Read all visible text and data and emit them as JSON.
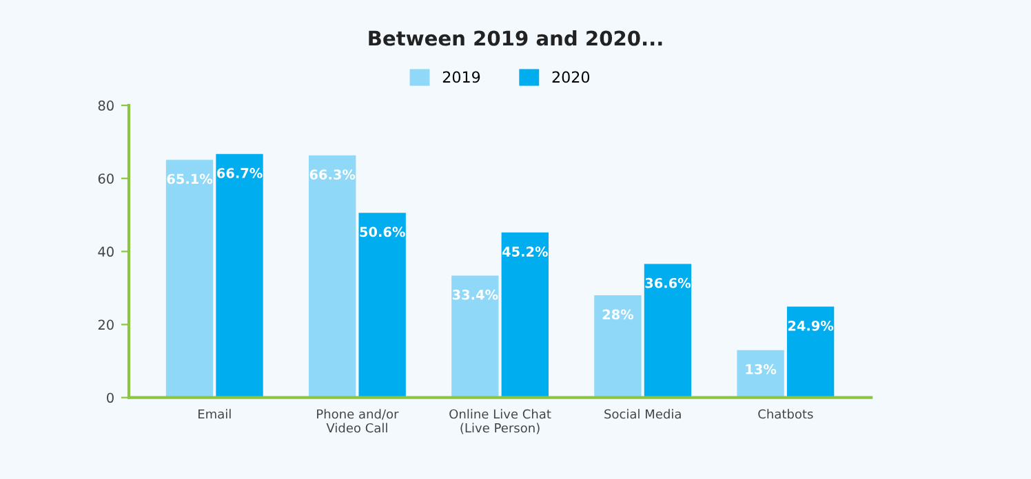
{
  "chart_data": {
    "type": "bar",
    "title": "Between 2019 and 2020...",
    "categories": [
      "Email",
      "Phone and/or\nVideo Call",
      "Online Live Chat\n(Live Person)",
      "Social Media",
      "Chatbots"
    ],
    "series": [
      {
        "name": "2019",
        "color": "#8fd8f7",
        "values": [
          65.1,
          66.3,
          33.4,
          28,
          13
        ],
        "value_labels": [
          "65.1%",
          "66.3%",
          "33.4%",
          "28%",
          "13%"
        ]
      },
      {
        "name": "2020",
        "color": "#00adef",
        "values": [
          66.7,
          50.6,
          45.2,
          36.6,
          24.9
        ],
        "value_labels": [
          "66.7%",
          "50.6%",
          "45.2%",
          "36.6%",
          "24.9%"
        ]
      }
    ],
    "ylim": [
      0,
      80
    ],
    "yticks": [
      0,
      20,
      40,
      60,
      80
    ],
    "grid": false,
    "legend": "top"
  }
}
